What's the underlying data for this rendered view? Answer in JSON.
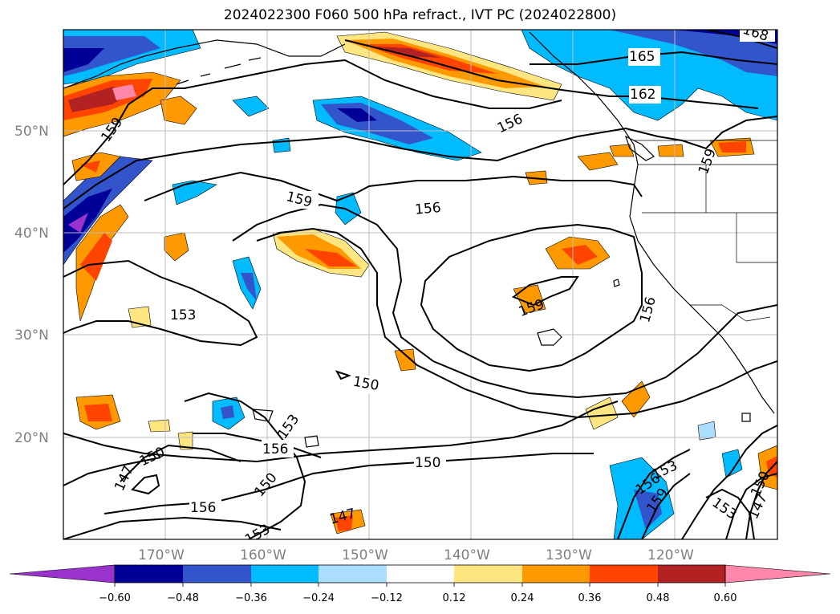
{
  "title": "2024022300 F060 500 hPa refract., IVT PC (2024022800)",
  "latitude_labels": [
    "50°N",
    "40°N",
    "30°N",
    "20°N"
  ],
  "longitude_labels": [
    "170°W",
    "160°W",
    "150°W",
    "140°W",
    "130°W",
    "120°W"
  ],
  "contour_labels": [
    {
      "text": "168"
    },
    {
      "text": "165"
    },
    {
      "text": "162"
    },
    {
      "text": "159"
    },
    {
      "text": "156"
    },
    {
      "text": "159"
    },
    {
      "text": "159"
    },
    {
      "text": "156"
    },
    {
      "text": "159"
    },
    {
      "text": "156"
    },
    {
      "text": "153"
    },
    {
      "text": "150"
    },
    {
      "text": "153"
    },
    {
      "text": "156"
    },
    {
      "text": "150"
    },
    {
      "text": "150"
    },
    {
      "text": "147"
    },
    {
      "text": "150"
    },
    {
      "text": "156"
    },
    {
      "text": "153"
    },
    {
      "text": "147"
    },
    {
      "text": "153"
    },
    {
      "text": "156"
    },
    {
      "text": "159"
    },
    {
      "text": "153"
    },
    {
      "text": "147"
    },
    {
      "text": "150"
    }
  ],
  "colorbar": {
    "ticks": [
      "−0.60",
      "−0.48",
      "−0.36",
      "−0.24",
      "−0.12",
      "0.12",
      "0.24",
      "0.36",
      "0.48",
      "0.60"
    ],
    "colors": [
      "#9933cc",
      "#000099",
      "#3355cc",
      "#00bbff",
      "#aaddff",
      "#ffffff",
      "#ffe680",
      "#ff9900",
      "#ff4400",
      "#b22222",
      "#ff88aa"
    ]
  }
}
